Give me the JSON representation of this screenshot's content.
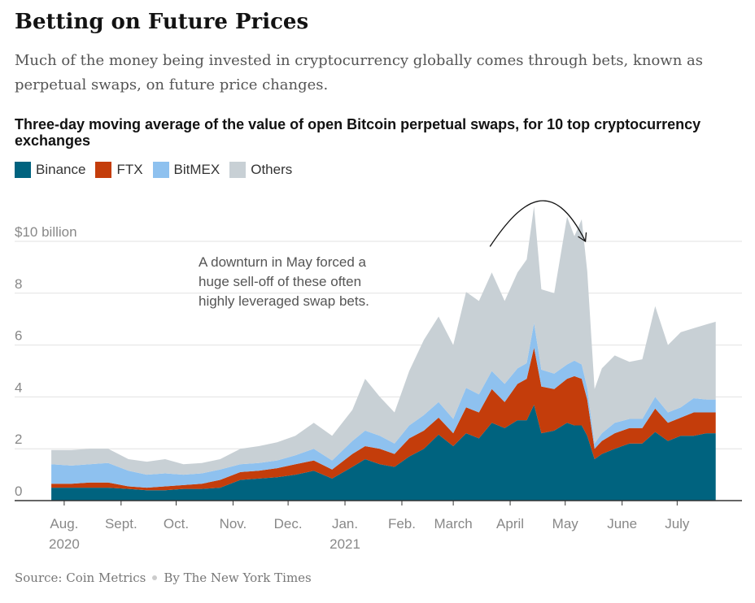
{
  "headline": "Betting on Future Prices",
  "subhead": "Much of the money being invested in cryptocurrency globally comes through bets, known as perpetual swaps, on future price changes.",
  "source": {
    "source_text": "Source: Coin Metrics",
    "byline": "By The New York Times"
  },
  "colors": {
    "binance": "#00637f",
    "ftx": "#c43d0b",
    "bitmex": "#8ec1ef",
    "others": "#c8d0d5"
  },
  "chart_data": {
    "type": "area",
    "stacked": true,
    "title": "Three-day moving average of the value of open Bitcoin perpetual swaps, for 10 top cryptocurrency exchanges",
    "legend_position": "top-left",
    "grid": true,
    "ylim": [
      0,
      10.5
    ],
    "y_ticks": [
      0,
      2,
      4,
      6,
      8,
      10
    ],
    "y_tick_labels": [
      "0",
      "2",
      "4",
      "6",
      "8",
      "$10 billion"
    ],
    "x_ticks": [
      {
        "date": "2020-08-01",
        "label": "Aug.",
        "sublabel": "2020"
      },
      {
        "date": "2020-09-01",
        "label": "Sept.",
        "sublabel": ""
      },
      {
        "date": "2020-10-01",
        "label": "Oct.",
        "sublabel": ""
      },
      {
        "date": "2020-11-01",
        "label": "Nov.",
        "sublabel": ""
      },
      {
        "date": "2020-12-01",
        "label": "Dec.",
        "sublabel": ""
      },
      {
        "date": "2021-01-01",
        "label": "Jan.",
        "sublabel": "2021"
      },
      {
        "date": "2021-02-01",
        "label": "Feb.",
        "sublabel": ""
      },
      {
        "date": "2021-03-01",
        "label": "March",
        "sublabel": ""
      },
      {
        "date": "2021-04-01",
        "label": "April",
        "sublabel": ""
      },
      {
        "date": "2021-05-01",
        "label": "May",
        "sublabel": ""
      },
      {
        "date": "2021-06-01",
        "label": "June",
        "sublabel": ""
      },
      {
        "date": "2021-07-01",
        "label": "July",
        "sublabel": ""
      }
    ],
    "x": [
      "2020-07-25",
      "2020-08-05",
      "2020-08-15",
      "2020-08-25",
      "2020-09-05",
      "2020-09-15",
      "2020-09-25",
      "2020-10-05",
      "2020-10-15",
      "2020-10-25",
      "2020-11-05",
      "2020-11-15",
      "2020-11-25",
      "2020-12-05",
      "2020-12-15",
      "2020-12-25",
      "2021-01-05",
      "2021-01-12",
      "2021-01-20",
      "2021-01-28",
      "2021-02-05",
      "2021-02-13",
      "2021-02-21",
      "2021-03-01",
      "2021-03-08",
      "2021-03-15",
      "2021-03-22",
      "2021-03-29",
      "2021-04-05",
      "2021-04-10",
      "2021-04-14",
      "2021-04-18",
      "2021-04-25",
      "2021-05-02",
      "2021-05-06",
      "2021-05-10",
      "2021-05-13",
      "2021-05-17",
      "2021-05-21",
      "2021-05-28",
      "2021-06-05",
      "2021-06-12",
      "2021-06-19",
      "2021-06-26",
      "2021-07-03",
      "2021-07-10",
      "2021-07-17",
      "2021-07-22"
    ],
    "series": [
      {
        "name": "Binance",
        "values": [
          0.5,
          0.5,
          0.5,
          0.5,
          0.45,
          0.4,
          0.4,
          0.45,
          0.45,
          0.5,
          0.8,
          0.85,
          0.9,
          1.0,
          1.15,
          0.85,
          1.3,
          1.6,
          1.4,
          1.3,
          1.7,
          2.0,
          2.55,
          2.1,
          2.6,
          2.4,
          3.0,
          2.8,
          3.1,
          3.1,
          3.7,
          2.6,
          2.7,
          3.0,
          2.9,
          2.9,
          2.5,
          1.6,
          1.8,
          2.0,
          2.2,
          2.2,
          2.65,
          2.3,
          2.5,
          2.5,
          2.6,
          2.6
        ]
      },
      {
        "name": "FTX",
        "values": [
          0.15,
          0.15,
          0.2,
          0.2,
          0.1,
          0.1,
          0.15,
          0.15,
          0.2,
          0.3,
          0.3,
          0.3,
          0.35,
          0.4,
          0.4,
          0.35,
          0.5,
          0.5,
          0.6,
          0.5,
          0.7,
          0.7,
          0.65,
          0.5,
          1.0,
          1.0,
          1.3,
          1.0,
          1.4,
          1.6,
          2.2,
          1.8,
          1.6,
          1.7,
          1.9,
          1.8,
          1.4,
          0.4,
          0.5,
          0.6,
          0.6,
          0.6,
          0.9,
          0.7,
          0.7,
          0.9,
          0.8,
          0.8
        ]
      },
      {
        "name": "BitMEX",
        "values": [
          0.75,
          0.7,
          0.7,
          0.75,
          0.6,
          0.5,
          0.5,
          0.4,
          0.4,
          0.4,
          0.3,
          0.3,
          0.3,
          0.35,
          0.45,
          0.35,
          0.5,
          0.6,
          0.5,
          0.4,
          0.5,
          0.6,
          0.6,
          0.55,
          0.75,
          0.7,
          0.7,
          0.7,
          0.6,
          0.6,
          0.95,
          0.65,
          0.6,
          0.55,
          0.6,
          0.55,
          0.45,
          0.2,
          0.3,
          0.4,
          0.35,
          0.35,
          0.45,
          0.4,
          0.4,
          0.55,
          0.5,
          0.5
        ]
      },
      {
        "name": "Others",
        "values": [
          0.55,
          0.6,
          0.6,
          0.55,
          0.45,
          0.5,
          0.55,
          0.4,
          0.4,
          0.4,
          0.6,
          0.65,
          0.7,
          0.75,
          1.0,
          0.95,
          1.2,
          2.0,
          1.5,
          1.2,
          2.1,
          2.9,
          3.3,
          2.85,
          3.7,
          3.6,
          3.8,
          3.2,
          3.7,
          4.0,
          4.5,
          3.1,
          3.1,
          5.7,
          4.8,
          5.6,
          4.5,
          2.1,
          2.5,
          2.6,
          2.2,
          2.3,
          3.5,
          2.6,
          2.9,
          2.7,
          2.9,
          3.0
        ]
      }
    ],
    "annotation": {
      "text_lines": [
        "A downturn in May forced a",
        "huge sell-off of these often",
        "highly leveraged swap bets."
      ],
      "arrow_from": {
        "date": "2021-03-21",
        "value": 9.8
      },
      "arrow_to": {
        "date": "2021-05-12",
        "value": 10.0
      }
    }
  }
}
